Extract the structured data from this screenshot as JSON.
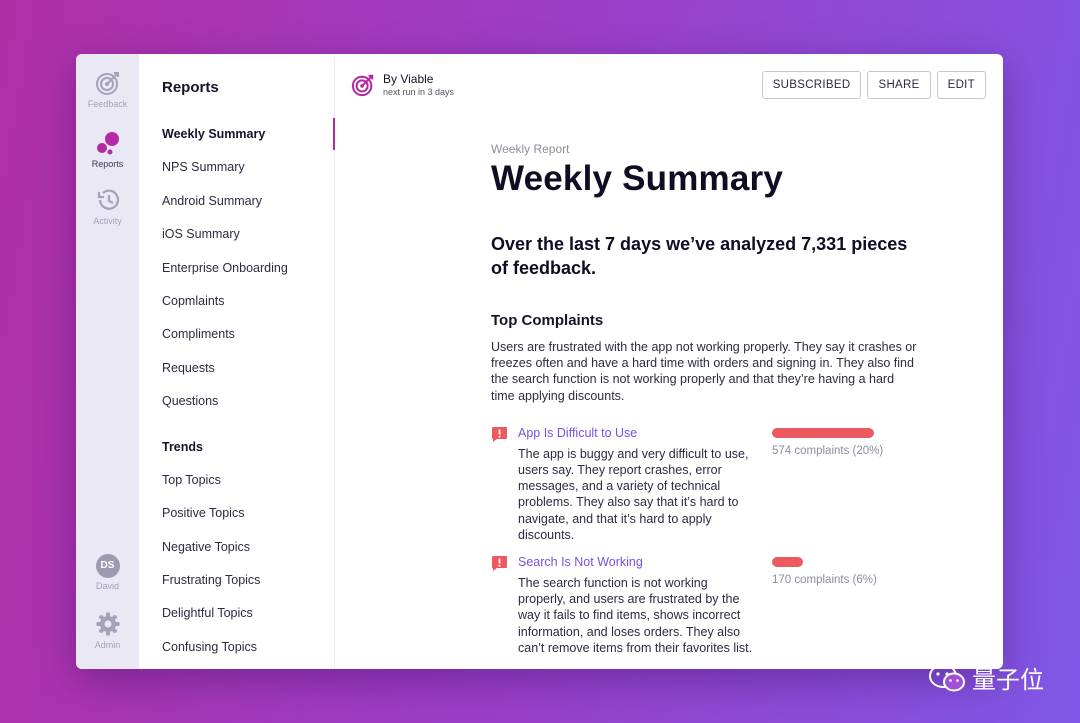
{
  "rail": {
    "feedback": "Feedback",
    "reports": "Reports",
    "activity": "Activity",
    "user_initials": "DS",
    "user_name": "David",
    "admin": "Admin"
  },
  "nav": {
    "title": "Reports",
    "items": [
      "Weekly Summary",
      "NPS Summary",
      "Android Summary",
      "iOS Summary",
      "Enterprise Onboarding",
      "Copmlaints",
      "Compliments",
      "Requests",
      "Questions"
    ],
    "trends_title": "Trends",
    "trends": [
      "Top Topics",
      "Positive Topics",
      "Negative Topics",
      "Frustrating Topics",
      "Delightful Topics",
      "Confusing Topics"
    ]
  },
  "header": {
    "by": "By Viable",
    "next_run": "next run in 3 days",
    "subscribed": "SUBSCRIBED",
    "share": "SHARE",
    "edit": "EDIT"
  },
  "report": {
    "eyebrow": "Weekly Report",
    "title": "Weekly Summary",
    "lead": "Over the last 7 days we’ve analyzed 7,331 pieces of feedback.",
    "section_title": "Top Complaints",
    "section_text": "Users are frustrated with the app not working properly. They say it crashes or freezes often and have a hard time with orders and signing in. They also find the search function is not working properly and that they’re having a hard time applying discounts.",
    "complaints": [
      {
        "title": "App Is Difficult to Use",
        "desc": "The app is buggy and very difficult to use, users say. They report crashes, error messages, and a variety of technical problems. They also say that it’s hard to navigate, and that it’s hard to apply discounts.",
        "count": "574 complaints (20%)",
        "share": 0.2
      },
      {
        "title": "Search Is Not Working",
        "desc": "The search function is not working properly, and users are frustrated by the way it fails to find items, shows incorrect information, and loses orders. They also can’t remove items from their favorites list.",
        "count": "170 complaints (6%)",
        "share": 0.06
      }
    ]
  },
  "watermark": "量子位",
  "colors": {
    "accent": "#b42aa3",
    "link": "#7b4fe6",
    "bar": "#ec5a5f"
  }
}
